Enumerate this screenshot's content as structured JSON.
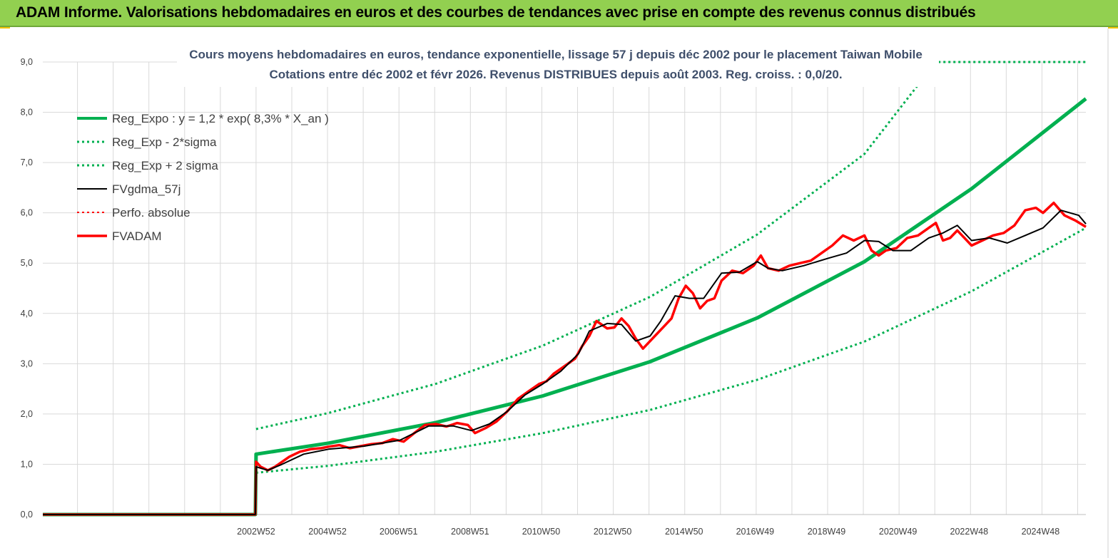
{
  "header": {
    "title": "ADAM Informe. Valorisations hebdomadaires en euros et des courbes de tendances avec prise en compte des revenus connus distribués",
    "bg_color": "#92d050"
  },
  "chart_data": {
    "type": "line",
    "title_line1": "Cours moyens hebdomadaires en euros, tendance exponentielle, lissage 57 j depuis déc 2002 pour le placement Taiwan Mobile",
    "title_line2": "Cotations entre déc 2002 et févr 2026. Revenus DISTRIBUES depuis août 2003. Reg. croiss. : 0,0/20.",
    "xlabel": "",
    "ylabel": "",
    "ylim": [
      0,
      9
    ],
    "x_range": [
      1997.0,
      2026.2
    ],
    "grid": true,
    "legend_position": "top-left",
    "y_ticks": [
      "0,0",
      "1,0",
      "2,0",
      "3,0",
      "4,0",
      "5,0",
      "6,0",
      "7,0",
      "8,0",
      "9,0"
    ],
    "x_tick_labels": [
      {
        "label": "2002W52",
        "x": 2002.97
      },
      {
        "label": "2004W52",
        "x": 2004.97
      },
      {
        "label": "2006W51",
        "x": 2006.96
      },
      {
        "label": "2008W51",
        "x": 2008.96
      },
      {
        "label": "2010W50",
        "x": 2010.95
      },
      {
        "label": "2012W50",
        "x": 2012.95
      },
      {
        "label": "2014W50",
        "x": 2014.95
      },
      {
        "label": "2016W49",
        "x": 2016.94
      },
      {
        "label": "2018W49",
        "x": 2018.94
      },
      {
        "label": "2020W49",
        "x": 2020.94
      },
      {
        "label": "2022W48",
        "x": 2022.93
      },
      {
        "label": "2024W48",
        "x": 2024.93
      }
    ],
    "series": [
      {
        "name": "Reg_Expo : y = 1,2 * exp( 8,3% *  X_an )",
        "color": "#00b050",
        "style": "solid",
        "width": 5,
        "x": [
          1997.0,
          2002.95,
          2002.97,
          2005,
          2008,
          2011,
          2014,
          2017,
          2020,
          2023,
          2026.2
        ],
        "y": [
          0,
          0,
          1.2,
          1.42,
          1.83,
          2.36,
          3.04,
          3.91,
          5.03,
          6.48,
          8.27
        ]
      },
      {
        "name": "Reg_Exp - 2*sigma",
        "color": "#00b050",
        "style": "dotted",
        "width": 3,
        "x": [
          2002.97,
          2005,
          2008,
          2011,
          2014,
          2017,
          2020,
          2023,
          2026.2
        ],
        "y": [
          0.83,
          0.97,
          1.25,
          1.62,
          2.08,
          2.68,
          3.44,
          4.44,
          5.7
        ]
      },
      {
        "name": "Reg_Exp + 2 sigma",
        "color": "#00b050",
        "style": "dotted",
        "width": 3,
        "x": [
          2002.97,
          2005,
          2008,
          2011,
          2014,
          2017,
          2020,
          2022.0,
          2026.2
        ],
        "y": [
          1.7,
          2.02,
          2.6,
          3.36,
          4.33,
          5.57,
          7.17,
          9.0,
          9.0
        ]
      },
      {
        "name": "FVgdma_57j",
        "color": "#000000",
        "style": "solid",
        "width": 2,
        "x": [
          1997.0,
          2002.95,
          2002.97,
          2003.3,
          2003.7,
          2004.3,
          2005.0,
          2006.0,
          2007.0,
          2007.8,
          2008.5,
          2009.0,
          2009.5,
          2010.0,
          2010.5,
          2011.0,
          2011.5,
          2012.0,
          2012.3,
          2012.8,
          2013.2,
          2013.6,
          2014.0,
          2014.3,
          2014.7,
          2015.1,
          2015.5,
          2016.0,
          2016.5,
          2017.0,
          2017.3,
          2017.7,
          2018.3,
          2019.0,
          2019.5,
          2020.0,
          2020.4,
          2020.8,
          2021.3,
          2021.8,
          2022.2,
          2022.6,
          2023.0,
          2023.5,
          2024.0,
          2024.5,
          2025.0,
          2025.5,
          2026.0,
          2026.2
        ],
        "y": [
          0,
          0,
          0.95,
          0.88,
          1.0,
          1.2,
          1.3,
          1.36,
          1.48,
          1.76,
          1.76,
          1.67,
          1.8,
          2.05,
          2.38,
          2.6,
          2.85,
          3.2,
          3.65,
          3.8,
          3.78,
          3.45,
          3.55,
          3.85,
          4.35,
          4.3,
          4.3,
          4.8,
          4.82,
          5.03,
          4.9,
          4.85,
          4.95,
          5.1,
          5.2,
          5.45,
          5.43,
          5.25,
          5.25,
          5.5,
          5.6,
          5.75,
          5.45,
          5.5,
          5.4,
          5.55,
          5.7,
          6.05,
          5.95,
          5.78
        ]
      },
      {
        "name": "Perfo. absolue",
        "color": "#ff0000",
        "style": "dotted",
        "width": 2,
        "x": [
          1997.0,
          2002.95
        ],
        "y": [
          0,
          0
        ]
      },
      {
        "name": "FVADAM",
        "color": "#ff0000",
        "style": "solid",
        "width": 3.5,
        "x": [
          1997.0,
          2002.95,
          2002.97,
          2003.1,
          2003.3,
          2003.5,
          2003.7,
          2003.9,
          2004.2,
          2004.5,
          2004.8,
          2005.0,
          2005.3,
          2005.6,
          2005.9,
          2006.2,
          2006.5,
          2006.8,
          2007.1,
          2007.4,
          2007.7,
          2008.0,
          2008.3,
          2008.6,
          2008.9,
          2009.1,
          2009.4,
          2009.7,
          2010.0,
          2010.3,
          2010.6,
          2010.9,
          2011.1,
          2011.3,
          2011.6,
          2011.9,
          2012.1,
          2012.3,
          2012.5,
          2012.8,
          2013.0,
          2013.2,
          2013.4,
          2013.6,
          2013.8,
          2014.0,
          2014.2,
          2014.4,
          2014.6,
          2014.8,
          2015.0,
          2015.2,
          2015.4,
          2015.6,
          2015.8,
          2016.0,
          2016.3,
          2016.6,
          2016.9,
          2017.1,
          2017.3,
          2017.6,
          2017.9,
          2018.2,
          2018.5,
          2018.8,
          2019.1,
          2019.4,
          2019.7,
          2020.0,
          2020.2,
          2020.4,
          2020.6,
          2020.9,
          2021.2,
          2021.5,
          2021.8,
          2022.0,
          2022.2,
          2022.4,
          2022.6,
          2022.8,
          2023.0,
          2023.3,
          2023.6,
          2023.9,
          2024.2,
          2024.5,
          2024.8,
          2025.0,
          2025.3,
          2025.6,
          2025.9,
          2026.2
        ],
        "y": [
          0,
          0,
          1.05,
          0.95,
          0.88,
          0.95,
          1.05,
          1.15,
          1.25,
          1.3,
          1.32,
          1.35,
          1.38,
          1.32,
          1.36,
          1.4,
          1.42,
          1.5,
          1.45,
          1.62,
          1.78,
          1.8,
          1.75,
          1.82,
          1.78,
          1.62,
          1.72,
          1.85,
          2.05,
          2.3,
          2.45,
          2.6,
          2.65,
          2.8,
          2.95,
          3.1,
          3.35,
          3.55,
          3.85,
          3.7,
          3.72,
          3.9,
          3.75,
          3.5,
          3.3,
          3.45,
          3.6,
          3.75,
          3.9,
          4.3,
          4.55,
          4.4,
          4.1,
          4.25,
          4.3,
          4.65,
          4.85,
          4.8,
          4.95,
          5.15,
          4.9,
          4.85,
          4.95,
          5.0,
          5.05,
          5.2,
          5.35,
          5.55,
          5.45,
          5.55,
          5.25,
          5.15,
          5.25,
          5.3,
          5.5,
          5.55,
          5.7,
          5.8,
          5.45,
          5.5,
          5.65,
          5.5,
          5.35,
          5.45,
          5.55,
          5.6,
          5.75,
          6.05,
          6.1,
          6.0,
          6.2,
          5.95,
          5.85,
          5.72
        ]
      }
    ]
  }
}
